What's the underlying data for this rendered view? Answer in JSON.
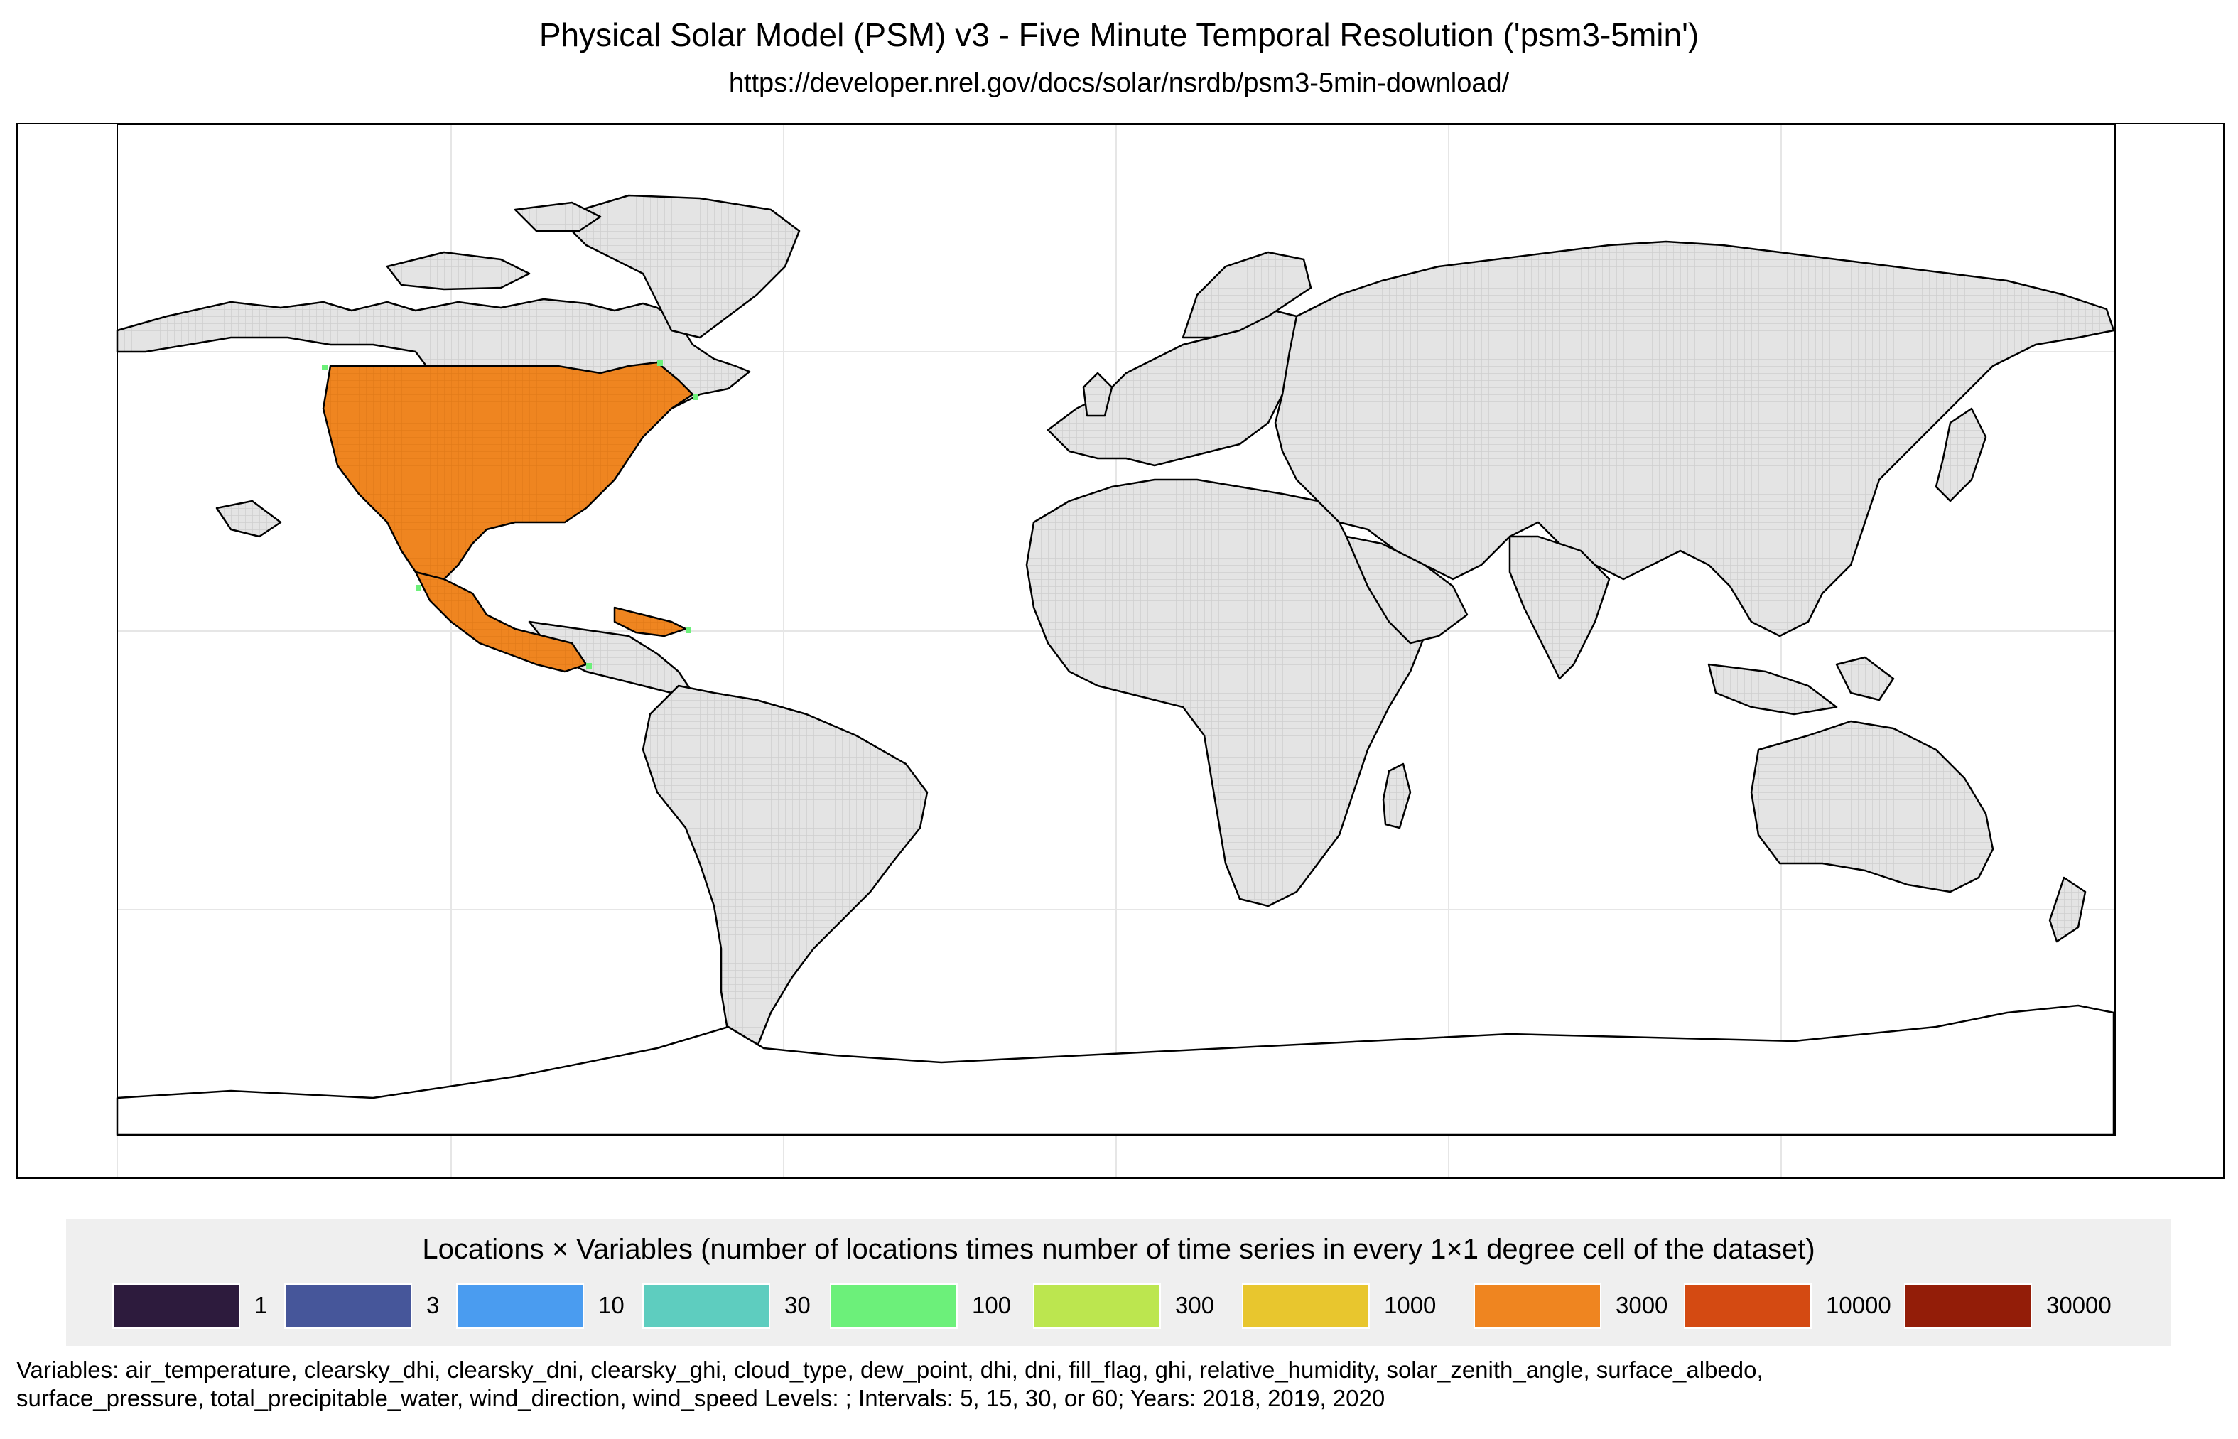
{
  "title": "Physical Solar Model (PSM) v3 - Five Minute Temporal Resolution ('psm3-5min')",
  "subtitle": "https://developer.nrel.gov/docs/solar/nsrdb/psm3-5min-download/",
  "legend": {
    "title": "Locations × Variables (number of locations times number of time series in every 1×1 degree cell of the dataset)",
    "items": [
      {
        "label": "1",
        "color": "#2d1b3d"
      },
      {
        "label": "3",
        "color": "#46569a"
      },
      {
        "label": "10",
        "color": "#4a9cf0"
      },
      {
        "label": "30",
        "color": "#5ecdbf"
      },
      {
        "label": "100",
        "color": "#6cf07a"
      },
      {
        "label": "300",
        "color": "#bce64f"
      },
      {
        "label": "1000",
        "color": "#e8c62e"
      },
      {
        "label": "3000",
        "color": "#ef8520"
      },
      {
        "label": "10000",
        "color": "#d44a12"
      },
      {
        "label": "30000",
        "color": "#931d08"
      }
    ]
  },
  "footnote": {
    "line1": "Variables: air_temperature, clearsky_dhi, clearsky_dni, clearsky_ghi, cloud_type, dew_point, dhi, dni, fill_flag, ghi, relative_humidity, solar_zenith_angle, surface_albedo,",
    "line2": "surface_pressure, total_precipitable_water, wind_direction, wind_speed Levels: ; Intervals: 5, 15, 30, or 60; Years: 2018, 2019, 2020"
  },
  "map": {
    "coverage_color": "#ef8520",
    "no_data_grid_color": "#dcdcdc",
    "coastline_color": "#000000",
    "graticule_color": "#e6e6e6"
  }
}
